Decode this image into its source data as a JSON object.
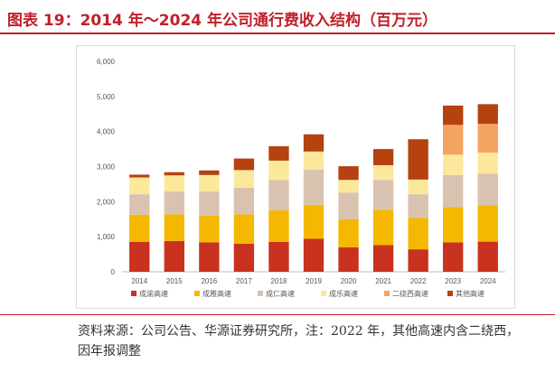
{
  "header": {
    "title": "图表 19：2014 年～2024 年公司通行费收入结构（百万元）"
  },
  "source_note": "资料来源：公司公告、华源证券研究所，注：2022 年，其他高速内含二绕西，因年报调整",
  "chart_data": {
    "type": "bar",
    "stacked": true,
    "title": "",
    "xlabel": "",
    "ylabel": "",
    "ylim": [
      0,
      6000
    ],
    "yticks": [
      0,
      1000,
      2000,
      3000,
      4000,
      5000,
      6000
    ],
    "ytick_labels": [
      "0",
      "1,000",
      "2,000",
      "3,000",
      "4,000",
      "5,000",
      "6,000"
    ],
    "grid": false,
    "legend_position": "bottom",
    "categories": [
      "2014",
      "2015",
      "2016",
      "2017",
      "2018",
      "2019",
      "2020",
      "2021",
      "2022",
      "2023",
      "2024"
    ],
    "series": [
      {
        "name": "成渝高速",
        "color": "#c8321e",
        "values": [
          850,
          880,
          840,
          800,
          850,
          940,
          700,
          760,
          640,
          840,
          860
        ]
      },
      {
        "name": "成雅高速",
        "color": "#f5b800",
        "values": [
          780,
          760,
          760,
          840,
          900,
          970,
          800,
          1010,
          900,
          1000,
          1040
        ]
      },
      {
        "name": "成仁高速",
        "color": "#d9c3b0",
        "values": [
          580,
          650,
          690,
          760,
          870,
          1000,
          760,
          850,
          670,
          920,
          900
        ]
      },
      {
        "name": "成乐高速",
        "color": "#fbe89a",
        "values": [
          480,
          460,
          470,
          500,
          550,
          520,
          360,
          420,
          420,
          580,
          600
        ]
      },
      {
        "name": "二绕西高速",
        "color": "#f4a460",
        "values": [
          0,
          0,
          0,
          0,
          0,
          0,
          0,
          0,
          0,
          850,
          820
        ]
      },
      {
        "name": "其他高速",
        "color": "#b5420f",
        "values": [
          80,
          90,
          130,
          330,
          410,
          490,
          390,
          460,
          1150,
          550,
          560
        ]
      }
    ]
  }
}
